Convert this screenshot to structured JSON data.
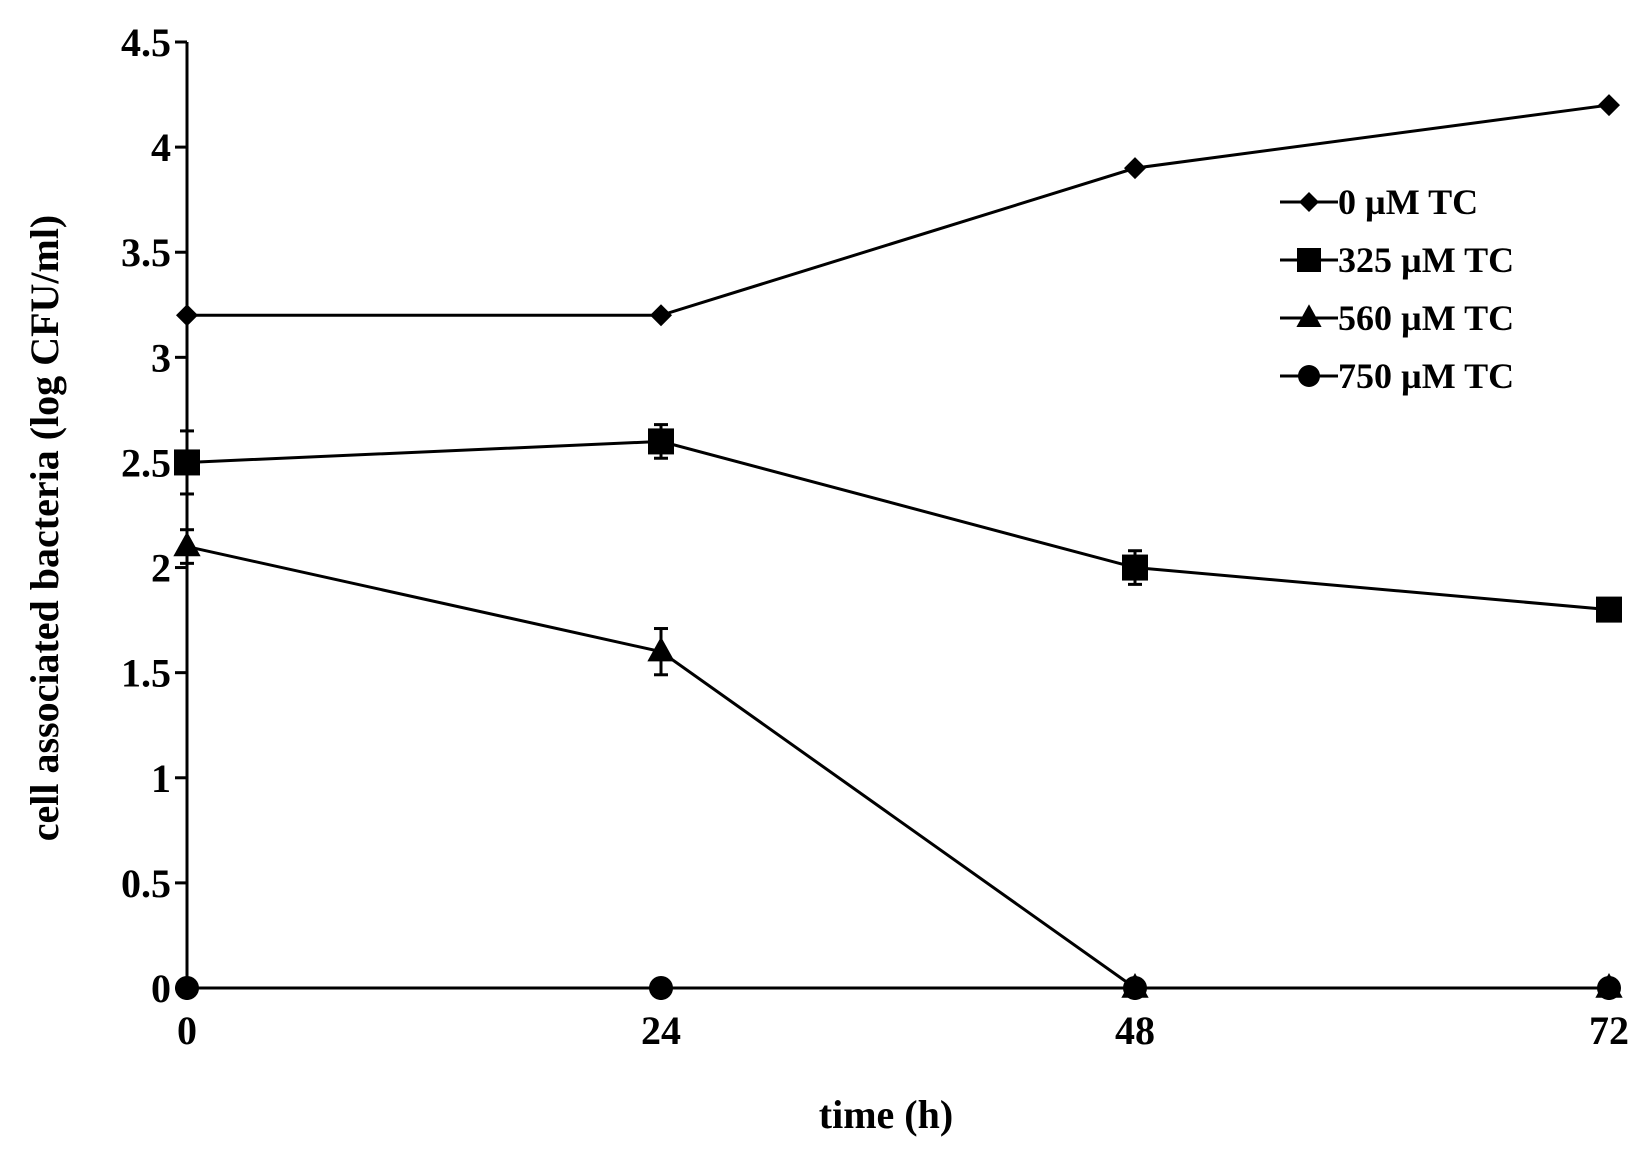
{
  "chart_data": {
    "type": "line",
    "title": "",
    "xlabel": "time (h)",
    "ylabel": "cell associated bacteria (log CFU/ml)",
    "x": [
      0,
      24,
      48,
      72
    ],
    "x_tick_labels": [
      "0",
      "24",
      "48",
      "72"
    ],
    "xlim": [
      0,
      72
    ],
    "ylim": [
      0,
      4.5
    ],
    "y_ticks": [
      0,
      0.5,
      1,
      1.5,
      2,
      2.5,
      3,
      3.5,
      4,
      4.5
    ],
    "y_tick_labels": [
      "0",
      "0.5",
      "1",
      "1.5",
      "2",
      "2.5",
      "3",
      "3.5",
      "4",
      "4.5"
    ],
    "grid": false,
    "legend_position": "top-right",
    "series": [
      {
        "name": "0 µM TC",
        "marker": "diamond",
        "values": [
          3.2,
          3.2,
          3.9,
          4.2
        ],
        "errors": [
          0.0,
          0.0,
          0.0,
          0.0
        ]
      },
      {
        "name": "325 µM TC",
        "marker": "square",
        "values": [
          2.5,
          2.6,
          2.0,
          1.8
        ],
        "errors": [
          0.15,
          0.08,
          0.08,
          0.05
        ]
      },
      {
        "name": "560 µM TC",
        "marker": "triangle",
        "values": [
          2.1,
          1.6,
          0.0,
          0.0
        ],
        "errors": [
          0.08,
          0.11,
          0.0,
          0.0
        ]
      },
      {
        "name": "750 µM TC",
        "marker": "circle",
        "values": [
          0.0,
          0.0,
          0.0,
          0.0
        ],
        "errors": [
          0.0,
          0.0,
          0.0,
          0.0
        ]
      }
    ],
    "colors": {
      "line": "#000000",
      "marker": "#000000",
      "background": "#ffffff"
    }
  }
}
